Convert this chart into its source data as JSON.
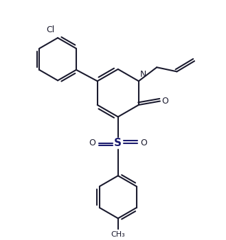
{
  "bg_color": "#ffffff",
  "line_color": "#1a1a2e",
  "so2_color": "#1a1a6e",
  "bond_width": 1.5,
  "fig_width": 3.29,
  "fig_height": 3.5,
  "dpi": 100,
  "xlim": [
    0,
    9
  ],
  "ylim": [
    0,
    9.55
  ]
}
